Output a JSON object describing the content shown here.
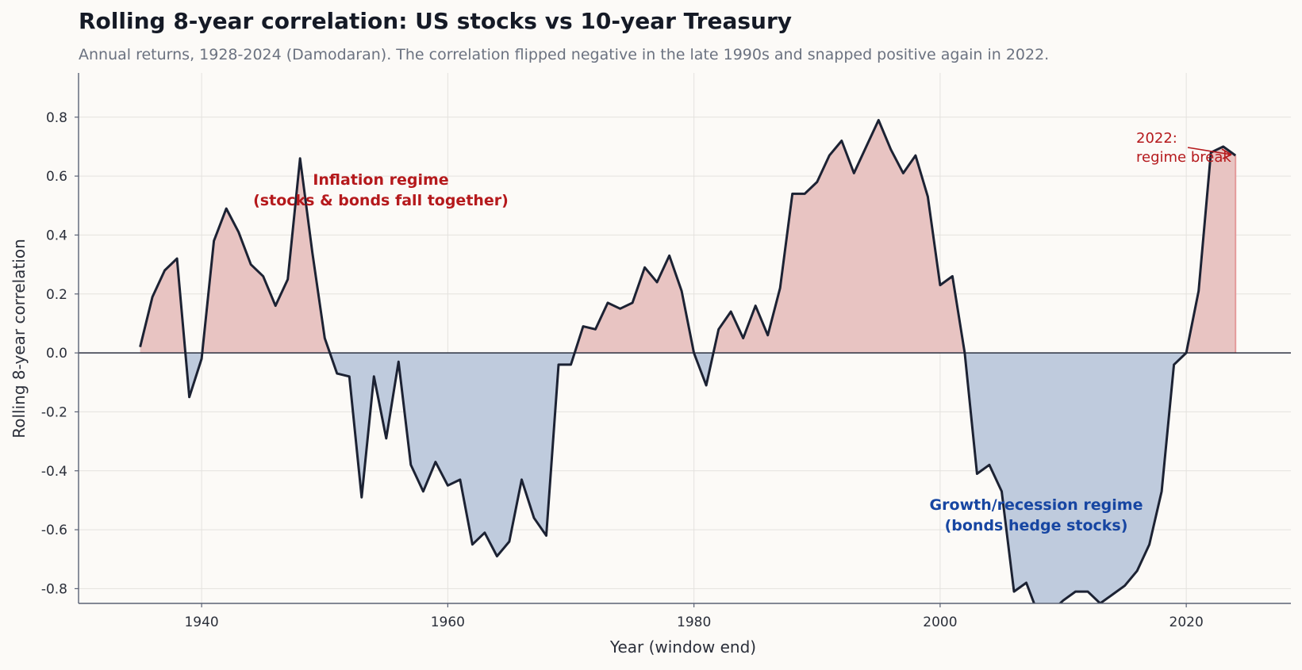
{
  "chart_data": {
    "type": "area",
    "title": "Rolling 8-year correlation: US stocks vs 10-year Treasury",
    "subtitle": "Annual returns, 1928-2024 (Damodaran). The correlation flipped negative in the late 1990s and snapped positive again in 2022.",
    "xlabel": "Year (window end)",
    "ylabel": "Rolling 8-year correlation",
    "xlim": [
      1930,
      2028.5
    ],
    "ylim": [
      -0.85,
      0.95
    ],
    "xticks": [
      1940,
      1960,
      1980,
      2000,
      2020
    ],
    "yticks": [
      0.8,
      0.6,
      0.4,
      0.2,
      0.0,
      -0.2,
      -0.4,
      -0.6,
      -0.8
    ],
    "ytick_labels": [
      "0.8",
      "0.6",
      "0.4",
      "0.2",
      "0.0",
      "-0.2",
      "-0.4",
      "-0.6",
      "-0.8"
    ],
    "grid": true,
    "colors": {
      "line": "#1c2233",
      "positive_fill": "#e8c4c2",
      "negative_fill": "#bfcbdd",
      "inflation_text": "#b5191c",
      "growth_text": "#1746a2"
    },
    "x": [
      1935,
      1936,
      1937,
      1938,
      1939,
      1940,
      1941,
      1942,
      1943,
      1944,
      1945,
      1946,
      1947,
      1948,
      1949,
      1950,
      1951,
      1952,
      1953,
      1954,
      1955,
      1956,
      1957,
      1958,
      1959,
      1960,
      1961,
      1962,
      1963,
      1964,
      1965,
      1966,
      1967,
      1968,
      1969,
      1970,
      1971,
      1972,
      1973,
      1974,
      1975,
      1976,
      1977,
      1978,
      1979,
      1980,
      1981,
      1982,
      1983,
      1984,
      1985,
      1986,
      1987,
      1988,
      1989,
      1990,
      1991,
      1992,
      1993,
      1994,
      1995,
      1996,
      1997,
      1998,
      1999,
      2000,
      2001,
      2002,
      2003,
      2004,
      2005,
      2006,
      2007,
      2008,
      2009,
      2010,
      2011,
      2012,
      2013,
      2014,
      2015,
      2016,
      2017,
      2018,
      2019,
      2020,
      2021,
      2022,
      2023,
      2024
    ],
    "values": [
      0.02,
      0.19,
      0.28,
      0.32,
      -0.15,
      -0.02,
      0.38,
      0.49,
      0.41,
      0.3,
      0.26,
      0.16,
      0.25,
      0.66,
      0.34,
      0.05,
      -0.07,
      -0.08,
      -0.49,
      -0.08,
      -0.29,
      -0.03,
      -0.38,
      -0.47,
      -0.37,
      -0.45,
      -0.43,
      -0.65,
      -0.61,
      -0.69,
      -0.64,
      -0.43,
      -0.56,
      -0.62,
      -0.04,
      -0.04,
      0.09,
      0.08,
      0.17,
      0.15,
      0.17,
      0.29,
      0.24,
      0.33,
      0.21,
      0.0,
      -0.11,
      0.08,
      0.14,
      0.05,
      0.16,
      0.06,
      0.22,
      0.54,
      0.54,
      0.58,
      0.67,
      0.72,
      0.61,
      0.7,
      0.79,
      0.69,
      0.61,
      0.67,
      0.53,
      0.23,
      0.26,
      0.0,
      -0.41,
      -0.38,
      -0.47,
      -0.81,
      -0.78,
      -0.89,
      -0.88,
      -0.84,
      -0.81,
      -0.81,
      -0.85,
      -0.82,
      -0.79,
      -0.74,
      -0.65,
      -0.47,
      -0.04,
      0.0,
      0.21,
      0.68,
      0.7,
      0.67
    ],
    "annotations": [
      {
        "line1": "Inflation regime",
        "line2": "(stocks & bonds fall together)",
        "year": 1965,
        "value": 0.56
      },
      {
        "line1": "Growth/recession regime",
        "line2": "(bonds hedge stocks)",
        "year": 2008,
        "value": -0.57
      },
      {
        "line1": "2022:",
        "line2": "regime break",
        "year": 2016,
        "value": 0.7
      }
    ]
  }
}
